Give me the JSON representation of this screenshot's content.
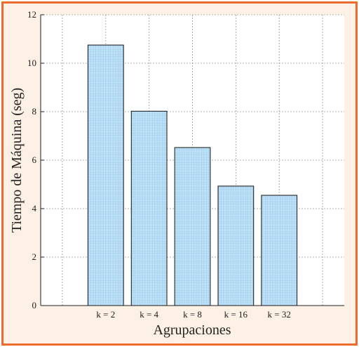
{
  "chart_data": {
    "type": "bar",
    "title": "",
    "xlabel": "Agrupaciones",
    "ylabel": "Tiempo de Máquina (seg)",
    "categories": [
      "k = 2",
      "k = 4",
      "k = 8",
      "k = 16",
      "k = 32"
    ],
    "values": [
      10.75,
      8.02,
      6.52,
      4.93,
      4.55
    ],
    "ylim": [
      0,
      12
    ],
    "yticks": [
      "0",
      "2",
      "4",
      "6",
      "8",
      "10",
      "12"
    ],
    "grid": true,
    "bar_color": "#bfe1f7",
    "grid_color": "#999999"
  },
  "colors": {
    "frame_border": "#ee6a2d",
    "frame_background": "#fdf0e4",
    "plot_background": "#ffffff"
  }
}
